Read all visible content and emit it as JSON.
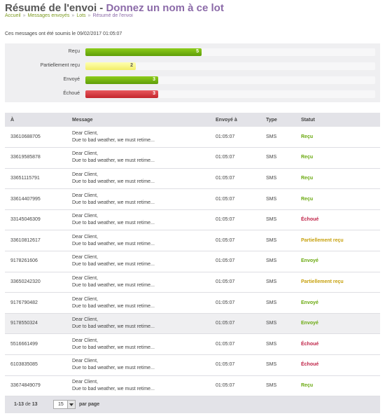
{
  "header": {
    "title": "Résumé de l'envoi",
    "separator": " - ",
    "subtitle": "Donnez un nom à ce lot"
  },
  "breadcrumb": [
    "Accueil",
    "Messages envoyés",
    "Lots",
    "Résumé de l'envoi"
  ],
  "submitted_text": "Ces messages ont été soumis le 09/02/2017 01:05:07",
  "summary": [
    {
      "label": "Reçu",
      "count": "5",
      "fraction": 0.4,
      "color": "green"
    },
    {
      "label": "Partiellement reçu",
      "count": "2",
      "fraction": 0.173,
      "color": "yellow"
    },
    {
      "label": "Envoyé",
      "count": "3",
      "fraction": 0.251,
      "color": "green"
    },
    {
      "label": "Échoué",
      "count": "3",
      "fraction": 0.251,
      "color": "red"
    }
  ],
  "table": {
    "columns": [
      "À",
      "Message",
      "Envoyé à",
      "Type",
      "Statut"
    ],
    "rows": [
      {
        "to": "33610688705",
        "msg1": "Dear Client,",
        "msg2": "Due to bad weather, we must retime...",
        "sent": "01:05:07",
        "type": "SMS",
        "status": "Reçu",
        "status_color": "green"
      },
      {
        "to": "33619585878",
        "msg1": "Dear Client,",
        "msg2": "Due to bad weather, we must retime...",
        "sent": "01:05:07",
        "type": "SMS",
        "status": "Reçu",
        "status_color": "green"
      },
      {
        "to": "33651115791",
        "msg1": "Dear Client,",
        "msg2": "Due to bad weather, we must retime...",
        "sent": "01:05:07",
        "type": "SMS",
        "status": "Reçu",
        "status_color": "green"
      },
      {
        "to": "33614407995",
        "msg1": "Dear Client,",
        "msg2": "Due to bad weather, we must retime...",
        "sent": "01:05:07",
        "type": "SMS",
        "status": "Reçu",
        "status_color": "green"
      },
      {
        "to": "33145046309",
        "msg1": "Dear Client,",
        "msg2": "Due to bad weather, we must retime...",
        "sent": "01:05:07",
        "type": "SMS",
        "status": "Échoué",
        "status_color": "red"
      },
      {
        "to": "33610812617",
        "msg1": "Dear Client,",
        "msg2": "Due to bad weather, we must retime...",
        "sent": "01:05:07",
        "type": "SMS",
        "status": "Partiellement reçu",
        "status_color": "yellow"
      },
      {
        "to": "9178261606",
        "msg1": "Dear Client,",
        "msg2": "Due to bad weather, we must retime...",
        "sent": "01:05:07",
        "type": "SMS",
        "status": "Envoyé",
        "status_color": "green"
      },
      {
        "to": "33650242320",
        "msg1": "Dear Client,",
        "msg2": "Due to bad weather, we must retime...",
        "sent": "01:05:07",
        "type": "SMS",
        "status": "Partiellement reçu",
        "status_color": "yellow"
      },
      {
        "to": "9176790482",
        "msg1": "Dear Client,",
        "msg2": "Due to bad weather, we must retime...",
        "sent": "01:05:07",
        "type": "SMS",
        "status": "Envoyé",
        "status_color": "green"
      },
      {
        "to": "9178550324",
        "msg1": "Dear Client,",
        "msg2": "Due to bad weather, we must retime...",
        "sent": "01:05:07",
        "type": "SMS",
        "status": "Envoyé",
        "status_color": "green",
        "highlight": true
      },
      {
        "to": "5516661499",
        "msg1": "Dear Client,",
        "msg2": "Due to bad weather, we must retime...",
        "sent": "01:05:07",
        "type": "SMS",
        "status": "Échoué",
        "status_color": "red"
      },
      {
        "to": "6103835085",
        "msg1": "Dear Client,",
        "msg2": "Due to bad weather, we must retime...",
        "sent": "01:05:07",
        "type": "SMS",
        "status": "Échoué",
        "status_color": "red"
      },
      {
        "to": "33674849079",
        "msg1": "Dear Client,",
        "msg2": "Due to bad weather, we must retime...",
        "sent": "01:05:07",
        "type": "SMS",
        "status": "Reçu",
        "status_color": "green"
      }
    ]
  },
  "pager": {
    "range": "1-13",
    "of_label": "de",
    "total": "13",
    "per_page_value": "15",
    "per_page_label": "par page"
  },
  "colors": {
    "title_accent": "#8b6aa8",
    "link_green": "#7b9a1e",
    "status_green": "#6aa90f",
    "status_red": "#c0264a",
    "status_yellow": "#c7a10e",
    "bar_green": "#6aaa10",
    "bar_yellow": "#f6f27e",
    "bar_red": "#d03a40"
  }
}
